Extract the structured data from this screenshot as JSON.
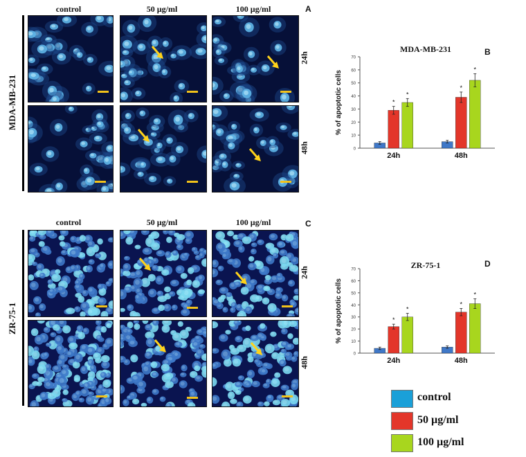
{
  "figure": {
    "colors": {
      "control": "#3f78c8",
      "dose50": "#e3362a",
      "dose100": "#a8d61e",
      "arrow": "#ffd21a",
      "scalebar": "#f2c21a",
      "legend_control": "#1aa0d8"
    },
    "microscopy_columns": [
      "control",
      "50 µg/ml",
      "100 µg/ml"
    ],
    "microscopy_rows": [
      "24h",
      "48h"
    ],
    "panels": {
      "A": {
        "letter": "A",
        "cell_line": "MDA-MB-231"
      },
      "C": {
        "letter": "C",
        "cell_line": "ZR-75-1"
      }
    },
    "legend": [
      {
        "label": "control",
        "color": "#1aa0d8"
      },
      {
        "label": "50 µg/ml",
        "color": "#e3362a"
      },
      {
        "label": "100 µg/ml",
        "color": "#a8d61e"
      }
    ]
  },
  "chart_data": [
    {
      "panel": "B",
      "type": "bar",
      "title": "MDA-MB-231",
      "ylabel": "% of apoptotic cells",
      "categories": [
        "24h",
        "48h"
      ],
      "ylim": [
        0,
        70
      ],
      "yticks": [
        0,
        10,
        20,
        30,
        40,
        50,
        60,
        70
      ],
      "series": [
        {
          "name": "control",
          "values": [
            4,
            5
          ],
          "errors": [
            1,
            1
          ],
          "stars": [
            false,
            false
          ]
        },
        {
          "name": "50 µg/ml",
          "values": [
            29,
            39
          ],
          "errors": [
            3,
            4
          ],
          "stars": [
            true,
            true
          ]
        },
        {
          "name": "100 µg/ml",
          "values": [
            35,
            52
          ],
          "errors": [
            3,
            5
          ],
          "stars": [
            true,
            true
          ]
        }
      ],
      "star": "*"
    },
    {
      "panel": "D",
      "type": "bar",
      "title": "ZR-75-1",
      "ylabel": "% of apoptotic cells",
      "categories": [
        "24h",
        "48h"
      ],
      "ylim": [
        0,
        70
      ],
      "yticks": [
        0,
        10,
        20,
        30,
        40,
        50,
        60,
        70
      ],
      "series": [
        {
          "name": "control",
          "values": [
            4,
            5
          ],
          "errors": [
            1,
            1
          ],
          "stars": [
            false,
            false
          ]
        },
        {
          "name": "50 µg/ml",
          "values": [
            22,
            34
          ],
          "errors": [
            2,
            3
          ],
          "stars": [
            true,
            true
          ]
        },
        {
          "name": "100 µg/ml",
          "values": [
            30,
            41
          ],
          "errors": [
            3,
            4
          ],
          "stars": [
            true,
            true
          ]
        }
      ],
      "star": "*"
    }
  ]
}
